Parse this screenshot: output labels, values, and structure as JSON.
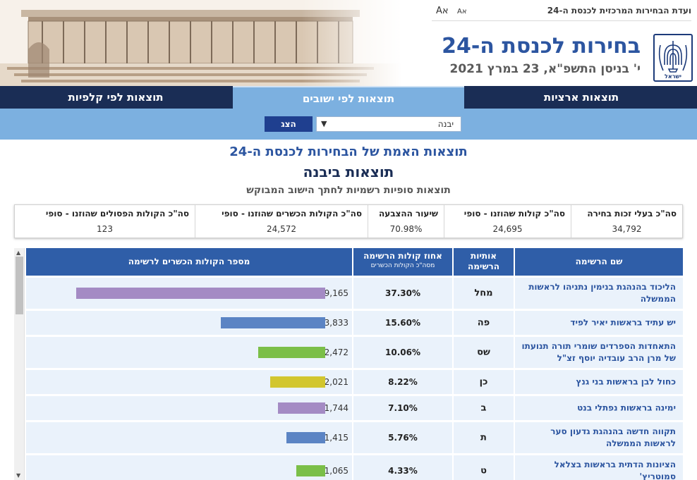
{
  "header": {
    "committee": "ועדת הבחירות המרכזית לכנסת ה-24",
    "font_increase": "Aא",
    "font_decrease": "Aא",
    "title": "בחירות לכנסת ה-24",
    "date": "י' בניסן התשפ\"א, 23 במרץ 2021",
    "emblem_text": "ישראל"
  },
  "nav": {
    "tab_national": "תוצאות ארציות",
    "tab_settlements": "תוצאות לפי ישובים",
    "tab_ballots": "תוצאות לפי קלפיות",
    "active": "tab_settlements"
  },
  "search": {
    "selected": "יבנה",
    "button": "הצג"
  },
  "titles": {
    "results": "תוצאות האמת של הבחירות לכנסת ה-24",
    "city": "תוצאות ביבנה",
    "subtitle": "תוצאות סופיות רשמיות לחתך הישוב המבוקש"
  },
  "summary": {
    "eligible_label": "סה\"כ בעלי זכות בחירה",
    "eligible_value": "34,792",
    "votes_label": "סה\"כ קולות שהוזנו - סופי",
    "votes_value": "24,695",
    "turnout_label": "שיעור ההצבעה",
    "turnout_value": "70.98%",
    "valid_label": "סה\"כ הקולות הכשרים שהוזנו - סופי",
    "valid_value": "24,572",
    "invalid_label": "סה\"כ הקולות הפסולים שהוזנו - סופי",
    "invalid_value": "123"
  },
  "table": {
    "col_name": "שם הרשימה",
    "col_letters_line1": "אותיות",
    "col_letters_line2": "הרשימה",
    "col_pct_line1": "אחוז קולות הרשימה",
    "col_pct_line2": "מסה\"כ הקולות הכשרים",
    "col_votes": "מספר הקולות הכשרים לרשימה",
    "max_votes": 9165,
    "rows": [
      {
        "name": "הליכוד בהנהגת בנימין נתניהו לראשות הממשלה",
        "letters": "מחל",
        "pct": "37.30%",
        "votes_text": "9,165",
        "votes": 9165,
        "color": "#a48bc4"
      },
      {
        "name": "יש עתיד בראשות יאיר לפיד",
        "letters": "פה",
        "pct": "15.60%",
        "votes_text": "3,833",
        "votes": 3833,
        "color": "#5b84c4"
      },
      {
        "name": "התאחדות הספרדים שומרי תורה תנועתו של מרן הרב עובדיה יוסף זצ\"ל",
        "letters": "שס",
        "pct": "10.06%",
        "votes_text": "2,472",
        "votes": 2472,
        "color": "#7bbf48"
      },
      {
        "name": "כחול לבן בראשות בני גנץ",
        "letters": "כן",
        "pct": "8.22%",
        "votes_text": "2,021",
        "votes": 2021,
        "color": "#d2c62e"
      },
      {
        "name": "ימינה בראשות נפתלי בנט",
        "letters": "ב",
        "pct": "7.10%",
        "votes_text": "1,744",
        "votes": 1744,
        "color": "#a48bc4"
      },
      {
        "name": "תקווה חדשה בהנהגת גדעון סער לראשות הממשלה",
        "letters": "ת",
        "pct": "5.76%",
        "votes_text": "1,415",
        "votes": 1415,
        "color": "#5b84c4"
      },
      {
        "name": "הציונות הדתית בראשות בצלאל סמוטריץ'",
        "letters": "ט",
        "pct": "4.33%",
        "votes_text": "1,065",
        "votes": 1065,
        "color": "#7bbf48"
      }
    ]
  }
}
